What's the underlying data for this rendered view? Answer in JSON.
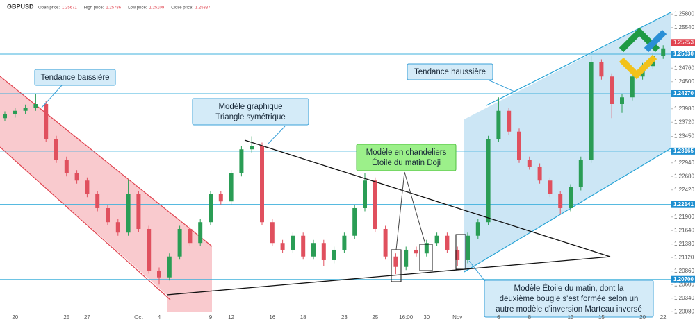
{
  "chart_data": {
    "type": "candlestick",
    "symbol": "GBPUSD",
    "quote": [
      {
        "label": "Open price:",
        "value": 1.25671
      },
      {
        "label": "High price:",
        "value": 1.25786
      },
      {
        "label": "Low price:",
        "value": 1.25109
      },
      {
        "label": "Close price:",
        "value": 1.25337
      }
    ],
    "categories": [
      null,
      "20",
      null,
      null,
      null,
      null,
      "25",
      null,
      "27",
      null,
      null,
      null,
      null,
      "Oct",
      null,
      "4",
      null,
      null,
      null,
      null,
      "9",
      null,
      "12",
      null,
      null,
      null,
      "16",
      null,
      null,
      "18",
      null,
      null,
      null,
      "23",
      null,
      null,
      "25",
      null,
      null,
      "16:00",
      null,
      "30",
      null,
      null,
      "Nov",
      null,
      null,
      null,
      "6",
      null,
      null,
      "8",
      null,
      null,
      null,
      "13",
      null,
      null,
      "15",
      null,
      null,
      null,
      "20",
      null,
      "22"
    ],
    "ohlc": [
      [
        1.238,
        1.2393,
        1.2374,
        1.2387
      ],
      [
        1.2387,
        1.24,
        1.2381,
        1.2394
      ],
      [
        1.2394,
        1.2406,
        1.2388,
        1.24
      ],
      [
        1.24,
        1.2427,
        1.2394,
        1.2407
      ],
      [
        1.2407,
        1.2413,
        1.2334,
        1.234
      ],
      [
        1.234,
        1.2346,
        1.2294,
        1.23
      ],
      [
        1.23,
        1.2306,
        1.2268,
        1.2274
      ],
      [
        1.2274,
        1.228,
        1.2254,
        1.226
      ],
      [
        1.226,
        1.2266,
        1.2228,
        1.2234
      ],
      [
        1.2234,
        1.224,
        1.2201,
        1.2207
      ],
      [
        1.2207,
        1.2213,
        1.2174,
        1.218
      ],
      [
        1.218,
        1.2186,
        1.2154,
        1.216
      ],
      [
        1.216,
        1.2262,
        1.2154,
        1.2234
      ],
      [
        1.2234,
        1.224,
        1.2161,
        1.2167
      ],
      [
        1.2167,
        1.2173,
        1.2081,
        1.2087
      ],
      [
        1.2087,
        1.2093,
        1.206,
        1.2074
      ],
      [
        1.2074,
        1.212,
        1.2068,
        1.2114
      ],
      [
        1.2114,
        1.2173,
        1.2108,
        1.2167
      ],
      [
        1.2167,
        1.2173,
        1.2134,
        1.214
      ],
      [
        1.214,
        1.2186,
        1.2134,
        1.218
      ],
      [
        1.218,
        1.224,
        1.2174,
        1.2234
      ],
      [
        1.2234,
        1.224,
        1.2214,
        1.222
      ],
      [
        1.222,
        1.228,
        1.2214,
        1.2274
      ],
      [
        1.2274,
        1.2326,
        1.2268,
        1.232
      ],
      [
        1.232,
        1.2345,
        1.2314,
        1.2327
      ],
      [
        1.2327,
        1.2333,
        1.2174,
        1.218
      ],
      [
        1.218,
        1.2186,
        1.2134,
        1.214
      ],
      [
        1.214,
        1.2146,
        1.2121,
        1.2127
      ],
      [
        1.2127,
        1.216,
        1.2121,
        1.2154
      ],
      [
        1.2154,
        1.216,
        1.2108,
        1.2114
      ],
      [
        1.2114,
        1.2146,
        1.2108,
        1.214
      ],
      [
        1.214,
        1.2146,
        1.2095,
        1.2107
      ],
      [
        1.2107,
        1.2133,
        1.2101,
        1.2127
      ],
      [
        1.2127,
        1.216,
        1.2121,
        1.2154
      ],
      [
        1.2154,
        1.2213,
        1.2148,
        1.2207
      ],
      [
        1.2207,
        1.2275,
        1.2201,
        1.226
      ],
      [
        1.226,
        1.2266,
        1.2161,
        1.2167
      ],
      [
        1.2167,
        1.2173,
        1.2108,
        1.2114
      ],
      [
        1.2114,
        1.212,
        1.208,
        1.2094
      ],
      [
        1.2094,
        1.2133,
        1.2088,
        1.2127
      ],
      [
        1.2127,
        1.2133,
        1.2114,
        1.212
      ],
      [
        1.212,
        1.2146,
        1.2114,
        1.214
      ],
      [
        1.214,
        1.216,
        1.2134,
        1.2154
      ],
      [
        1.2154,
        1.216,
        1.2121,
        1.2127
      ],
      [
        1.2127,
        1.2133,
        1.2095,
        1.2107
      ],
      [
        1.2107,
        1.216,
        1.2101,
        1.2154
      ],
      [
        1.2154,
        1.2186,
        1.2148,
        1.218
      ],
      [
        1.218,
        1.2346,
        1.2174,
        1.234
      ],
      [
        1.234,
        1.242,
        1.2334,
        1.2394
      ],
      [
        1.2394,
        1.24,
        1.2348,
        1.2354
      ],
      [
        1.2354,
        1.236,
        1.2294,
        1.23
      ],
      [
        1.23,
        1.2306,
        1.2281,
        1.2287
      ],
      [
        1.2287,
        1.2293,
        1.2254,
        1.226
      ],
      [
        1.226,
        1.2266,
        1.2228,
        1.2234
      ],
      [
        1.2234,
        1.224,
        1.2195,
        1.2207
      ],
      [
        1.2207,
        1.2253,
        1.2201,
        1.2247
      ],
      [
        1.2247,
        1.2306,
        1.2241,
        1.23
      ],
      [
        1.23,
        1.25,
        1.2294,
        1.2487
      ],
      [
        1.2487,
        1.2493,
        1.2454,
        1.246
      ],
      [
        1.246,
        1.2466,
        1.238,
        1.2407
      ],
      [
        1.2407,
        1.2426,
        1.239,
        1.242
      ],
      [
        1.242,
        1.2466,
        1.2414,
        1.246
      ],
      [
        1.246,
        1.2486,
        1.2454,
        1.248
      ],
      [
        1.248,
        1.2506,
        1.2474,
        1.25
      ],
      [
        1.25,
        1.252,
        1.2494,
        1.2514
      ]
    ],
    "up_color": "#2a9d55",
    "down_color": "#e0505e",
    "ylim": [
      1.19843,
      1.2607
    ],
    "yticks": [
      {
        "value": 1.258,
        "label": "1.25800"
      },
      {
        "value": 1.2554,
        "label": "1.25540"
      },
      {
        "value": 1.2476,
        "label": "1.24760"
      },
      {
        "value": 1.245,
        "label": "1.24500"
      },
      {
        "value": 1.2398,
        "label": "1.23980"
      },
      {
        "value": 1.2372,
        "label": "1.23720"
      },
      {
        "value": 1.2345,
        "label": "1.23450"
      },
      {
        "value": 1.2294,
        "label": "1.22940"
      },
      {
        "value": 1.2268,
        "label": "1.22680"
      },
      {
        "value": 1.2242,
        "label": "1.22420"
      },
      {
        "value": 1.219,
        "label": "1.21900"
      },
      {
        "value": 1.2164,
        "label": "1.21640"
      },
      {
        "value": 1.2138,
        "label": "1.21380"
      },
      {
        "value": 1.2112,
        "label": "1.21120"
      },
      {
        "value": 1.2086,
        "label": "1.20860"
      },
      {
        "value": 1.206,
        "label": "1.20600"
      },
      {
        "value": 1.2034,
        "label": "1.20340"
      },
      {
        "value": 1.2008,
        "label": "1.20080"
      }
    ],
    "levels": [
      {
        "value": 1.2503,
        "label": "1.25030"
      },
      {
        "value": 1.2427,
        "label": "1.24270"
      },
      1.23165,
      1.22141,
      {
        "value": 1.207,
        "label": "1.20700"
      }
    ],
    "current_price": 1.25253,
    "annotations": [
      [
        "Tendance baissière"
      ],
      [
        "Modèle graphique",
        "Triangle symétrique"
      ],
      [
        "Modèle en chandeliers",
        "Étoile du matin Doji"
      ],
      [
        "Tendance haussière"
      ],
      [
        "Modèle Étoile du matin, dont la",
        "deuxième bougie s'est formée selon un",
        "autre modèle d'inversion Marteau inversé"
      ]
    ]
  }
}
